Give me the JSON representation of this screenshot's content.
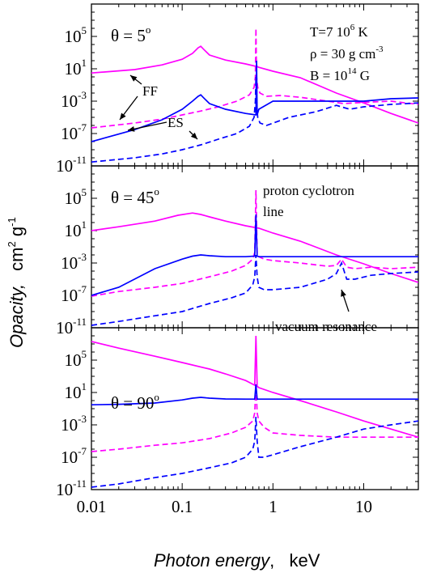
{
  "figure": {
    "xlabel_italic": "Photon energy",
    "xlabel_unit": ",   keV",
    "ylabel_italic": "Opacity,",
    "ylabel_unit_base": "cm",
    "ylabel_unit_exp1": "2",
    "ylabel_unit_mid": " g",
    "ylabel_unit_exp2": "-1",
    "colors": {
      "ff": "#ff00ff",
      "es": "#0000ff"
    }
  },
  "chart_data": [
    {
      "type": "line",
      "panel": "theta-5",
      "x_scale": "log",
      "y_scale": "log",
      "xlim": [
        0.01,
        40
      ],
      "ylim": [
        1e-11,
        1000000000.0
      ],
      "y_tick_labels": [
        {
          "base": "10",
          "exp": "-11",
          "value": 1e-11
        },
        {
          "base": "10",
          "exp": "-7",
          "value": 1e-07
        },
        {
          "base": "10",
          "exp": "-3",
          "value": 0.001
        },
        {
          "base": "10",
          "exp": "1",
          "value": 10.0
        },
        {
          "base": "10",
          "exp": "5",
          "value": 100000.0
        }
      ],
      "angle_label": {
        "text": "θ = 5",
        "sup": "o"
      },
      "info_lines": [
        {
          "text": "T=7 10",
          "sup": "6",
          "tail": " K"
        },
        {
          "text": "ρ = 30 g cm",
          "sup": "-3",
          "tail": ""
        },
        {
          "text": "B = 10",
          "sup": "14",
          "tail": " G"
        }
      ],
      "annotations": {
        "ff": "FF",
        "es": "ES"
      },
      "series": [
        {
          "id": "ff-mode1",
          "color": "#ff00ff",
          "dash": false,
          "x": [
            0.01,
            0.03,
            0.06,
            0.1,
            0.13,
            0.15,
            0.16,
            0.17,
            0.2,
            0.3,
            0.5,
            0.65,
            0.66,
            0.67,
            0.7,
            1,
            2,
            5,
            10,
            20,
            40
          ],
          "y": [
            3,
            8,
            30,
            150,
            800,
            4000,
            6000,
            3000,
            500,
            120,
            40,
            20,
            30,
            18,
            15,
            5,
            0.8,
            0.01,
            0.0006,
            3e-05,
            2e-06
          ]
        },
        {
          "id": "ff-mode2",
          "color": "#ff00ff",
          "dash": true,
          "x": [
            0.01,
            0.03,
            0.06,
            0.1,
            0.16,
            0.25,
            0.4,
            0.55,
            0.62,
            0.64,
            0.65,
            0.66,
            0.68,
            0.72,
            0.85,
            1.2,
            2,
            4,
            6,
            10,
            20,
            40
          ],
          "y": [
            5e-07,
            2e-06,
            6e-06,
            2e-05,
            6e-05,
            0.0002,
            0.001,
            0.006,
            0.05,
            1,
            1000000.0,
            1,
            0.05,
            0.01,
            0.004,
            0.005,
            0.003,
            0.001,
            0.0005,
            0.0007,
            0.001,
            0.0004
          ]
        },
        {
          "id": "es-mode1",
          "color": "#0000ff",
          "dash": false,
          "x": [
            0.01,
            0.03,
            0.06,
            0.1,
            0.13,
            0.15,
            0.16,
            0.17,
            0.2,
            0.3,
            0.5,
            0.65,
            0.66,
            0.67,
            0.7,
            1,
            2,
            3,
            5,
            10,
            20,
            40
          ],
          "y": [
            1e-08,
            3e-07,
            5e-06,
            0.0001,
            0.001,
            0.004,
            0.006,
            0.003,
            0.0005,
            0.0001,
            3e-05,
            2e-05,
            100,
            2e-05,
            0.0001,
            0.001,
            0.001,
            0.001,
            0.001,
            0.001,
            0.002,
            0.0025
          ]
        },
        {
          "id": "es-mode2",
          "color": "#0000ff",
          "dash": true,
          "x": [
            0.01,
            0.03,
            0.06,
            0.1,
            0.16,
            0.25,
            0.4,
            0.55,
            0.62,
            0.64,
            0.65,
            0.66,
            0.68,
            0.72,
            0.85,
            1.5,
            3,
            5,
            7,
            10,
            20,
            40
          ],
          "y": [
            3e-11,
            1e-10,
            3e-10,
            1e-09,
            4e-09,
            2e-08,
            1e-07,
            8e-07,
            1e-05,
            0.001,
            1,
            0.001,
            1e-05,
            2e-06,
            1e-06,
            1e-05,
            5e-05,
            0.0003,
            0.0001,
            0.0002,
            0.0004,
            0.0006
          ]
        }
      ]
    },
    {
      "type": "line",
      "panel": "theta-45",
      "x_scale": "log",
      "y_scale": "log",
      "xlim": [
        0.01,
        40
      ],
      "ylim": [
        1e-11,
        1000000000.0
      ],
      "y_tick_labels": [
        {
          "base": "10",
          "exp": "-11",
          "value": 1e-11
        },
        {
          "base": "10",
          "exp": "-7",
          "value": 1e-07
        },
        {
          "base": "10",
          "exp": "-3",
          "value": 0.001
        },
        {
          "base": "10",
          "exp": "1",
          "value": 10.0
        },
        {
          "base": "10",
          "exp": "5",
          "value": 100000.0
        }
      ],
      "angle_label": {
        "text": "θ = 45",
        "sup": "o"
      },
      "annotations": {
        "cyclotron_line1": "proton cyclotron",
        "cyclotron_line2": "line",
        "vacuum": "vacuum resonance"
      },
      "series": [
        {
          "id": "ff-mode1",
          "color": "#ff00ff",
          "dash": false,
          "x": [
            0.01,
            0.02,
            0.05,
            0.09,
            0.13,
            0.16,
            0.2,
            0.3,
            0.5,
            0.7,
            1,
            2,
            5,
            10,
            20,
            40
          ],
          "y": [
            10,
            30,
            150,
            800,
            1500,
            1000,
            500,
            150,
            40,
            20,
            5,
            0.5,
            0.01,
            0.0008,
            5e-05,
            4e-06
          ]
        },
        {
          "id": "ff-mode2",
          "color": "#ff00ff",
          "dash": true,
          "x": [
            0.01,
            0.02,
            0.05,
            0.1,
            0.2,
            0.35,
            0.5,
            0.6,
            0.63,
            0.65,
            0.67,
            0.7,
            0.8,
            1,
            2,
            4,
            5,
            5.7,
            6.5,
            8,
            12,
            20,
            40
          ],
          "y": [
            8e-08,
            3e-07,
            1e-06,
            3e-06,
            2e-05,
            0.0001,
            0.0005,
            0.003,
            0.02,
            1000000.0,
            0.02,
            0.006,
            0.003,
            0.002,
            0.001,
            0.0004,
            0.0005,
            0.003,
            0.0003,
            0.0002,
            0.0003,
            0.0002,
            0.0003
          ]
        },
        {
          "id": "es-mode1",
          "color": "#0000ff",
          "dash": false,
          "x": [
            0.01,
            0.02,
            0.05,
            0.1,
            0.13,
            0.16,
            0.2,
            0.3,
            0.5,
            0.63,
            0.65,
            0.67,
            0.7,
            1,
            2,
            5,
            10,
            20,
            40
          ],
          "y": [
            1e-07,
            1e-06,
            0.0002,
            0.003,
            0.007,
            0.01,
            0.008,
            0.006,
            0.006,
            0.007,
            1000,
            0.007,
            0.006,
            0.006,
            0.006,
            0.006,
            0.006,
            0.006,
            0.006
          ]
        },
        {
          "id": "es-mode2",
          "color": "#0000ff",
          "dash": true,
          "x": [
            0.01,
            0.02,
            0.05,
            0.1,
            0.2,
            0.35,
            0.5,
            0.6,
            0.63,
            0.65,
            0.67,
            0.7,
            0.8,
            1,
            2,
            4,
            5,
            5.7,
            6.5,
            8,
            12,
            20,
            40
          ],
          "y": [
            2e-11,
            6e-11,
            3e-10,
            1e-09,
            1e-08,
            5e-08,
            2e-07,
            2e-06,
            2e-05,
            0.01,
            2e-05,
            1e-06,
            5e-07,
            5e-07,
            1e-06,
            1e-05,
            5e-05,
            0.001,
            1e-05,
            1e-05,
            3e-05,
            5e-05,
            8e-05
          ]
        }
      ]
    },
    {
      "type": "line",
      "panel": "theta-90",
      "x_scale": "log",
      "y_scale": "log",
      "xlim": [
        0.01,
        40
      ],
      "ylim": [
        1e-11,
        1000000000.0
      ],
      "y_tick_labels": [
        {
          "base": "10",
          "exp": "-11",
          "value": 1e-11
        },
        {
          "base": "10",
          "exp": "-7",
          "value": 1e-07
        },
        {
          "base": "10",
          "exp": "-3",
          "value": 0.001
        },
        {
          "base": "10",
          "exp": "1",
          "value": 10.0
        },
        {
          "base": "10",
          "exp": "5",
          "value": 100000.0
        }
      ],
      "x_tick_labels": [
        {
          "text": "0.01",
          "value": 0.01
        },
        {
          "text": "0.1",
          "value": 0.1
        },
        {
          "text": "1",
          "value": 1
        },
        {
          "text": "10",
          "value": 10
        }
      ],
      "angle_label": {
        "text": "θ = 90",
        "sup": "o"
      },
      "series": [
        {
          "id": "ff-mode1",
          "color": "#ff00ff",
          "dash": false,
          "x": [
            0.01,
            0.02,
            0.05,
            0.1,
            0.2,
            0.3,
            0.5,
            0.63,
            0.65,
            0.67,
            0.7,
            1,
            2,
            5,
            10,
            20,
            40
          ],
          "y": [
            20000000.0,
            3000000.0,
            300000.0,
            50000.0,
            8000,
            2000,
            300,
            80,
            100000000.0,
            60,
            40,
            10,
            1,
            0.04,
            0.003,
            0.0003,
            3e-05
          ]
        },
        {
          "id": "ff-mode2",
          "color": "#ff00ff",
          "dash": true,
          "x": [
            0.01,
            0.02,
            0.05,
            0.1,
            0.2,
            0.35,
            0.5,
            0.6,
            0.63,
            0.65,
            0.67,
            0.7,
            0.8,
            1,
            2,
            5,
            10,
            20,
            40
          ],
          "y": [
            5e-07,
            1e-06,
            3e-06,
            6e-06,
            2e-05,
            0.0001,
            0.0005,
            0.003,
            0.03,
            100,
            0.03,
            0.003,
            0.0005,
            0.0001,
            5e-05,
            3e-05,
            3e-05,
            3e-05,
            3e-05
          ]
        },
        {
          "id": "es-mode1",
          "color": "#0000ff",
          "dash": false,
          "x": [
            0.01,
            0.02,
            0.05,
            0.1,
            0.13,
            0.16,
            0.2,
            0.3,
            0.5,
            0.63,
            0.65,
            0.67,
            0.7,
            1,
            2,
            5,
            10,
            20,
            40
          ],
          "y": [
            0.3,
            0.35,
            0.5,
            1.2,
            2,
            2.5,
            2,
            1.6,
            1.5,
            1.5,
            100,
            1.5,
            1.5,
            1.5,
            1.5,
            1.5,
            1.5,
            1.5,
            1.5
          ]
        },
        {
          "id": "es-mode2",
          "color": "#0000ff",
          "dash": true,
          "x": [
            0.01,
            0.02,
            0.05,
            0.1,
            0.2,
            0.35,
            0.5,
            0.6,
            0.63,
            0.65,
            0.67,
            0.7,
            0.8,
            1,
            2,
            5,
            10,
            20,
            40
          ],
          "y": [
            2e-11,
            5e-11,
            3e-10,
            1e-09,
            5e-09,
            2e-08,
            1e-07,
            1e-06,
            1e-05,
            0.01,
            1e-05,
            1e-07,
            1e-07,
            2e-07,
            2e-06,
            3e-05,
            0.0003,
            0.001,
            0.003
          ]
        }
      ]
    }
  ]
}
